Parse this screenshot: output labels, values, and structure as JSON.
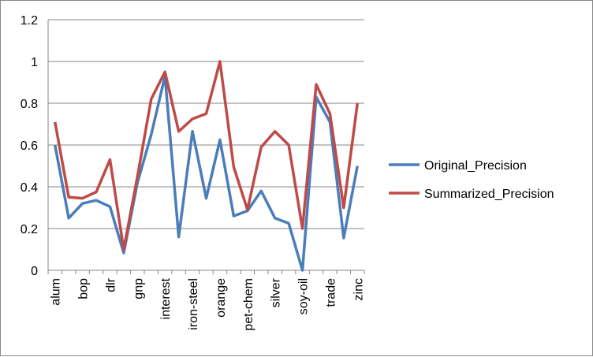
{
  "chart_data": {
    "type": "line",
    "categories": [
      "alum",
      "",
      "bop",
      "",
      "dlr",
      "",
      "gnp",
      "",
      "interest",
      "",
      "iron-steel",
      "",
      "orange",
      "",
      "pet-chem",
      "",
      "silver",
      "",
      "soy-oil",
      "",
      "trade",
      "",
      "zinc"
    ],
    "series": [
      {
        "name": "Original_Precision",
        "color": "#4a7ebb",
        "values": [
          0.6,
          0.25,
          0.32,
          0.335,
          0.305,
          0.083,
          0.42,
          0.65,
          0.93,
          0.16,
          0.665,
          0.345,
          0.625,
          0.26,
          0.285,
          0.38,
          0.25,
          0.225,
          0.0,
          0.83,
          0.71,
          0.155,
          0.5
        ]
      },
      {
        "name": "Summarized_Precision",
        "color": "#be4b48",
        "values": [
          0.71,
          0.35,
          0.345,
          0.375,
          0.53,
          0.1,
          0.45,
          0.82,
          0.95,
          0.665,
          0.725,
          0.75,
          1.0,
          0.495,
          0.29,
          0.59,
          0.665,
          0.6,
          0.2,
          0.89,
          0.75,
          0.3,
          0.8
        ]
      }
    ],
    "ylim": [
      0,
      1.2
    ],
    "yticks": [
      "0",
      "0.2",
      "0.4",
      "0.6",
      "0.8",
      "1",
      "1.2"
    ],
    "ytick_values": [
      0,
      0.2,
      0.4,
      0.6,
      0.8,
      1.0,
      1.2
    ],
    "grid": true,
    "legend_position": "right"
  }
}
